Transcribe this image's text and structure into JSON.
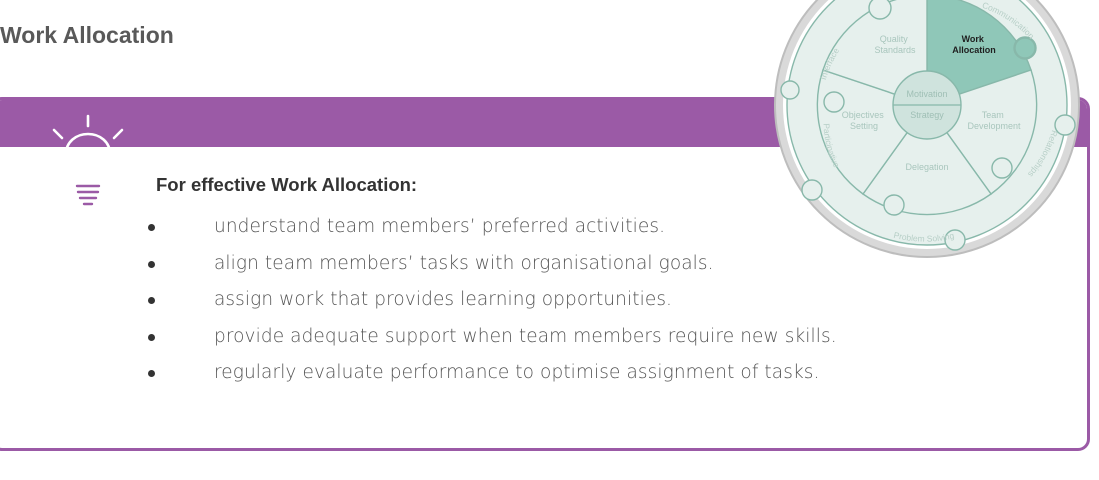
{
  "page": {
    "title": "Work Allocation"
  },
  "tip": {
    "heading": "For effective Work Allocation:",
    "items": [
      "understand team members’ preferred activities.",
      "align team members’ tasks with organisational goals.",
      "assign work that provides learning opportunities.",
      "provide adequate support when team members require new skills.",
      "regularly evaluate performance to optimise assignment of tasks."
    ]
  },
  "wheel": {
    "center_top": "Motivation",
    "center_bottom": "Strategy",
    "inner_segments": {
      "quality": [
        "Quality",
        "Standards"
      ],
      "work": [
        "Work",
        "Allocation"
      ],
      "team_dev": [
        "Team",
        "Development"
      ],
      "delegation": "Delegation",
      "objectives": [
        "Objectives",
        "Setting"
      ]
    },
    "outer_labels": {
      "interface": [
        "Interface",
        "Management"
      ],
      "communication": "Communication",
      "relationships": [
        "Team",
        "Relationships"
      ],
      "problem": [
        "Problem Solving",
        "& Counselling"
      ],
      "participative": [
        "Participative",
        "Decision Making"
      ]
    },
    "highlight": "Work Allocation"
  },
  "colors": {
    "accent_purple": "#9b5aa6",
    "wheel_fill": "#e6f0ed",
    "wheel_highlight": "#8fc7b8",
    "wheel_stroke": "#88b8aa",
    "outer_ring": "#c9c9c9"
  }
}
